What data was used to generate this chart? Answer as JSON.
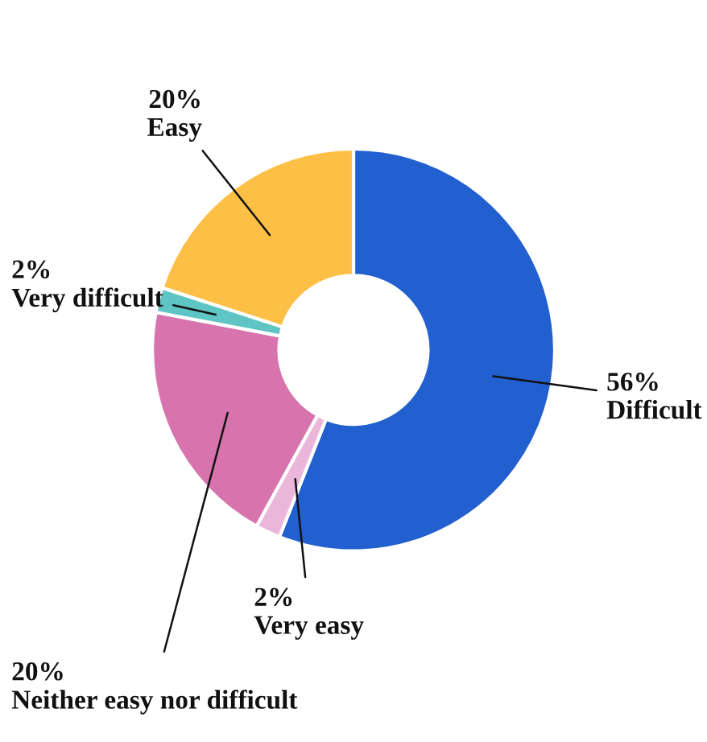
{
  "chart_data": {
    "type": "donut",
    "categories": [
      "Difficult",
      "Very easy",
      "Neither easy nor difficult",
      "Very difficult",
      "Easy"
    ],
    "values": [
      56,
      2,
      20,
      2,
      20
    ],
    "value_labels": [
      "56%",
      "2%",
      "20%",
      "2%",
      "20%"
    ],
    "colors": [
      "#2360cf",
      "#eab6d9",
      "#d774ae",
      "#5fc5c4",
      "#fdbf45"
    ]
  }
}
